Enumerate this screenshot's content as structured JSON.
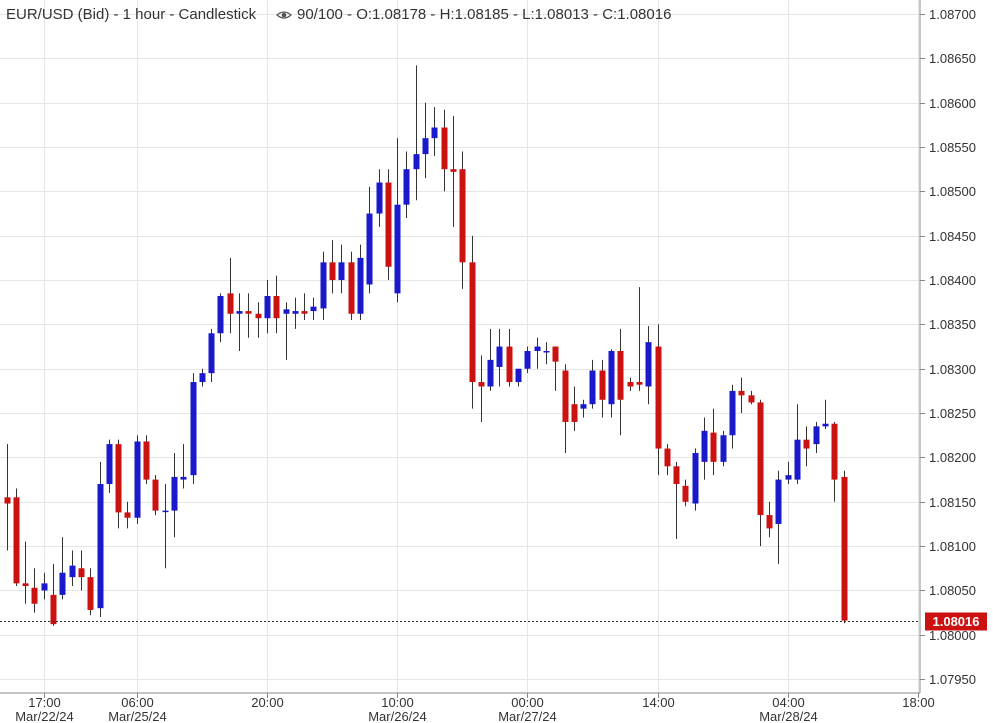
{
  "header": {
    "title": "EUR/USD (Bid) - 1 hour - Candlestick",
    "eye_icon": "eye-icon",
    "quote": "90/100 - O:1.08178 - H:1.08185 - L:1.08013 - C:1.08016"
  },
  "colors": {
    "up": "#1a1acc",
    "down": "#cc1111",
    "grid": "#e6e6e6",
    "axis": "#888888",
    "last_price_bg": "#cc1111"
  },
  "chart_data": {
    "type": "candlestick",
    "title": "EUR/USD (Bid) - 1 hour - Candlestick",
    "ylim": [
      1.0794,
      1.087
    ],
    "y_ticks": [
      1.087,
      1.0865,
      1.086,
      1.0855,
      1.085,
      1.0845,
      1.084,
      1.0835,
      1.083,
      1.0825,
      1.082,
      1.0815,
      1.081,
      1.0805,
      1.08,
      1.0795
    ],
    "y_tick_labels": [
      "1.08700",
      "1.08650",
      "1.08600",
      "1.08550",
      "1.08500",
      "1.08450",
      "1.08400",
      "1.08350",
      "1.08300",
      "1.08250",
      "1.08200",
      "1.08150",
      "1.08100",
      "1.08050",
      "1.08000",
      "1.07950"
    ],
    "x_ticks": [
      {
        "index": 4,
        "label": "17:00",
        "date": "Mar/22/24"
      },
      {
        "index": 14,
        "label": "06:00",
        "date": "Mar/25/24"
      },
      {
        "index": 28,
        "label": "20:00"
      },
      {
        "index": 42,
        "label": "10:00",
        "date": "Mar/26/24"
      },
      {
        "index": 56,
        "label": "00:00",
        "date": "Mar/27/24"
      },
      {
        "index": 70,
        "label": "14:00"
      },
      {
        "index": 84,
        "label": "04:00",
        "date": "Mar/28/24"
      },
      {
        "index": 98,
        "label": "18:00"
      }
    ],
    "last_price": 1.08016,
    "last_price_label": "1.08016",
    "candles": [
      {
        "o": 1.08155,
        "h": 1.08215,
        "l": 1.08095,
        "c": 1.08148
      },
      {
        "o": 1.08155,
        "h": 1.08165,
        "l": 1.08055,
        "c": 1.08058
      },
      {
        "o": 1.08058,
        "h": 1.08105,
        "l": 1.08035,
        "c": 1.08055
      },
      {
        "o": 1.08053,
        "h": 1.08075,
        "l": 1.08025,
        "c": 1.08035
      },
      {
        "o": 1.0805,
        "h": 1.0807,
        "l": 1.0804,
        "c": 1.08058
      },
      {
        "o": 1.08045,
        "h": 1.0808,
        "l": 1.0801,
        "c": 1.08012
      },
      {
        "o": 1.08045,
        "h": 1.0811,
        "l": 1.0804,
        "c": 1.0807
      },
      {
        "o": 1.08065,
        "h": 1.08095,
        "l": 1.08055,
        "c": 1.08078
      },
      {
        "o": 1.08075,
        "h": 1.08095,
        "l": 1.0805,
        "c": 1.08065
      },
      {
        "o": 1.08065,
        "h": 1.08075,
        "l": 1.08022,
        "c": 1.08028
      },
      {
        "o": 1.0803,
        "h": 1.08195,
        "l": 1.0802,
        "c": 1.0817
      },
      {
        "o": 1.0817,
        "h": 1.0822,
        "l": 1.0816,
        "c": 1.08215
      },
      {
        "o": 1.08215,
        "h": 1.0822,
        "l": 1.0812,
        "c": 1.08138
      },
      {
        "o": 1.08138,
        "h": 1.0815,
        "l": 1.0812,
        "c": 1.08132
      },
      {
        "o": 1.08132,
        "h": 1.08225,
        "l": 1.08125,
        "c": 1.08218
      },
      {
        "o": 1.08218,
        "h": 1.08225,
        "l": 1.0817,
        "c": 1.08175
      },
      {
        "o": 1.08175,
        "h": 1.0818,
        "l": 1.08135,
        "c": 1.0814
      },
      {
        "o": 1.0814,
        "h": 1.0817,
        "l": 1.08075,
        "c": 1.0814
      },
      {
        "o": 1.0814,
        "h": 1.08205,
        "l": 1.0811,
        "c": 1.08178
      },
      {
        "o": 1.08175,
        "h": 1.08215,
        "l": 1.08165,
        "c": 1.08178
      },
      {
        "o": 1.0818,
        "h": 1.08295,
        "l": 1.0817,
        "c": 1.08285
      },
      {
        "o": 1.08285,
        "h": 1.083,
        "l": 1.0828,
        "c": 1.08295
      },
      {
        "o": 1.08295,
        "h": 1.08345,
        "l": 1.08285,
        "c": 1.0834
      },
      {
        "o": 1.0834,
        "h": 1.08385,
        "l": 1.0833,
        "c": 1.08382
      },
      {
        "o": 1.08385,
        "h": 1.08425,
        "l": 1.0834,
        "c": 1.08362
      },
      {
        "o": 1.08362,
        "h": 1.08385,
        "l": 1.0832,
        "c": 1.08365
      },
      {
        "o": 1.08365,
        "h": 1.08385,
        "l": 1.08335,
        "c": 1.08362
      },
      {
        "o": 1.08362,
        "h": 1.08375,
        "l": 1.08335,
        "c": 1.08357
      },
      {
        "o": 1.08357,
        "h": 1.084,
        "l": 1.0834,
        "c": 1.08382
      },
      {
        "o": 1.08382,
        "h": 1.08405,
        "l": 1.0834,
        "c": 1.08357
      },
      {
        "o": 1.08362,
        "h": 1.08375,
        "l": 1.0831,
        "c": 1.08367
      },
      {
        "o": 1.08362,
        "h": 1.0838,
        "l": 1.08345,
        "c": 1.08365
      },
      {
        "o": 1.08365,
        "h": 1.08385,
        "l": 1.08355,
        "c": 1.08362
      },
      {
        "o": 1.08365,
        "h": 1.0838,
        "l": 1.08355,
        "c": 1.0837
      },
      {
        "o": 1.08368,
        "h": 1.08432,
        "l": 1.08355,
        "c": 1.0842
      },
      {
        "o": 1.0842,
        "h": 1.08445,
        "l": 1.08385,
        "c": 1.084
      },
      {
        "o": 1.084,
        "h": 1.0844,
        "l": 1.08385,
        "c": 1.0842
      },
      {
        "o": 1.0842,
        "h": 1.08432,
        "l": 1.08355,
        "c": 1.08362
      },
      {
        "o": 1.08362,
        "h": 1.0844,
        "l": 1.08355,
        "c": 1.08425
      },
      {
        "o": 1.08395,
        "h": 1.08505,
        "l": 1.08385,
        "c": 1.08475
      },
      {
        "o": 1.08475,
        "h": 1.08525,
        "l": 1.0846,
        "c": 1.0851
      },
      {
        "o": 1.0851,
        "h": 1.08525,
        "l": 1.084,
        "c": 1.08415
      },
      {
        "o": 1.08385,
        "h": 1.0856,
        "l": 1.08375,
        "c": 1.08485
      },
      {
        "o": 1.08485,
        "h": 1.08545,
        "l": 1.0847,
        "c": 1.08525
      },
      {
        "o": 1.08525,
        "h": 1.08642,
        "l": 1.0849,
        "c": 1.08542
      },
      {
        "o": 1.08542,
        "h": 1.086,
        "l": 1.08515,
        "c": 1.0856
      },
      {
        "o": 1.0856,
        "h": 1.08595,
        "l": 1.0854,
        "c": 1.08572
      },
      {
        "o": 1.08572,
        "h": 1.08592,
        "l": 1.085,
        "c": 1.08525
      },
      {
        "o": 1.08525,
        "h": 1.08585,
        "l": 1.0846,
        "c": 1.08522
      },
      {
        "o": 1.08525,
        "h": 1.08545,
        "l": 1.0839,
        "c": 1.0842
      },
      {
        "o": 1.0842,
        "h": 1.0845,
        "l": 1.08255,
        "c": 1.08285
      },
      {
        "o": 1.08285,
        "h": 1.08315,
        "l": 1.0824,
        "c": 1.0828
      },
      {
        "o": 1.0828,
        "h": 1.08345,
        "l": 1.08275,
        "c": 1.0831
      },
      {
        "o": 1.08302,
        "h": 1.08345,
        "l": 1.0828,
        "c": 1.08325
      },
      {
        "o": 1.08325,
        "h": 1.08345,
        "l": 1.0828,
        "c": 1.08285
      },
      {
        "o": 1.08285,
        "h": 1.083,
        "l": 1.0828,
        "c": 1.083
      },
      {
        "o": 1.083,
        "h": 1.08325,
        "l": 1.08295,
        "c": 1.0832
      },
      {
        "o": 1.0832,
        "h": 1.08335,
        "l": 1.083,
        "c": 1.08325
      },
      {
        "o": 1.0832,
        "h": 1.0833,
        "l": 1.08305,
        "c": 1.0832
      },
      {
        "o": 1.08325,
        "h": 1.08325,
        "l": 1.08275,
        "c": 1.08308
      },
      {
        "o": 1.08298,
        "h": 1.08305,
        "l": 1.08205,
        "c": 1.0824
      },
      {
        "o": 1.0826,
        "h": 1.0828,
        "l": 1.0823,
        "c": 1.0824
      },
      {
        "o": 1.08255,
        "h": 1.08265,
        "l": 1.08245,
        "c": 1.0826
      },
      {
        "o": 1.0826,
        "h": 1.0831,
        "l": 1.08255,
        "c": 1.08298
      },
      {
        "o": 1.08298,
        "h": 1.0831,
        "l": 1.08245,
        "c": 1.08265
      },
      {
        "o": 1.0826,
        "h": 1.08322,
        "l": 1.08245,
        "c": 1.0832
      },
      {
        "o": 1.0832,
        "h": 1.08345,
        "l": 1.08225,
        "c": 1.08265
      },
      {
        "o": 1.08285,
        "h": 1.0829,
        "l": 1.08275,
        "c": 1.0828
      },
      {
        "o": 1.08285,
        "h": 1.08392,
        "l": 1.08275,
        "c": 1.08282
      },
      {
        "o": 1.0828,
        "h": 1.08348,
        "l": 1.0826,
        "c": 1.0833
      },
      {
        "o": 1.08325,
        "h": 1.0835,
        "l": 1.0818,
        "c": 1.0821
      },
      {
        "o": 1.0821,
        "h": 1.08215,
        "l": 1.0818,
        "c": 1.0819
      },
      {
        "o": 1.0819,
        "h": 1.08195,
        "l": 1.08108,
        "c": 1.0817
      },
      {
        "o": 1.08168,
        "h": 1.08175,
        "l": 1.08145,
        "c": 1.0815
      },
      {
        "o": 1.08148,
        "h": 1.0821,
        "l": 1.0814,
        "c": 1.08205
      },
      {
        "o": 1.08195,
        "h": 1.08245,
        "l": 1.08175,
        "c": 1.0823
      },
      {
        "o": 1.08228,
        "h": 1.08255,
        "l": 1.0818,
        "c": 1.08195
      },
      {
        "o": 1.08195,
        "h": 1.0823,
        "l": 1.0819,
        "c": 1.08225
      },
      {
        "o": 1.08225,
        "h": 1.08282,
        "l": 1.0821,
        "c": 1.08275
      },
      {
        "o": 1.08275,
        "h": 1.0829,
        "l": 1.0825,
        "c": 1.0827
      },
      {
        "o": 1.0827,
        "h": 1.08275,
        "l": 1.0826,
        "c": 1.08262
      },
      {
        "o": 1.08262,
        "h": 1.08265,
        "l": 1.081,
        "c": 1.08135
      },
      {
        "o": 1.08135,
        "h": 1.0815,
        "l": 1.0811,
        "c": 1.0812
      },
      {
        "o": 1.08125,
        "h": 1.08185,
        "l": 1.0808,
        "c": 1.08175
      },
      {
        "o": 1.08175,
        "h": 1.08195,
        "l": 1.0817,
        "c": 1.0818
      },
      {
        "o": 1.08175,
        "h": 1.0826,
        "l": 1.0817,
        "c": 1.0822
      },
      {
        "o": 1.0822,
        "h": 1.08235,
        "l": 1.0819,
        "c": 1.0821
      },
      {
        "o": 1.08215,
        "h": 1.0824,
        "l": 1.08205,
        "c": 1.08235
      },
      {
        "o": 1.08235,
        "h": 1.08265,
        "l": 1.08232,
        "c": 1.08238
      },
      {
        "o": 1.08238,
        "h": 1.0824,
        "l": 1.0815,
        "c": 1.08175
      },
      {
        "o": 1.08178,
        "h": 1.08185,
        "l": 1.08013,
        "c": 1.08016
      }
    ]
  }
}
